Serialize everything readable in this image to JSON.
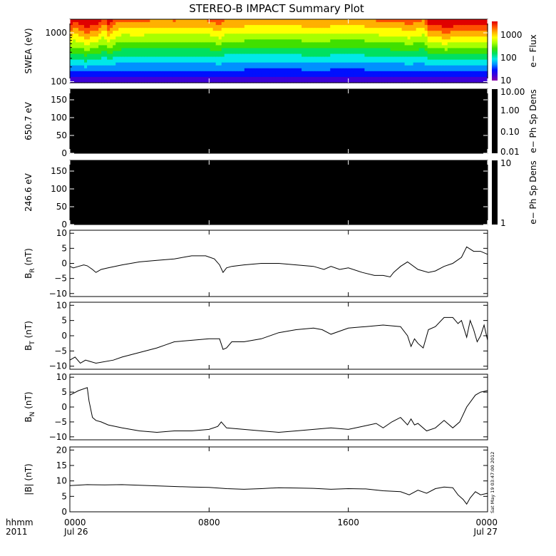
{
  "chart_data": {
    "title": "STEREO-B IMPACT Summary Plot",
    "time_axis": {
      "row_label": "hhmm",
      "year_label": "2011",
      "range_hours": [
        0,
        24
      ],
      "ticks": [
        {
          "hour": 0,
          "label": "0000",
          "date": "Jul 26"
        },
        {
          "hour": 8,
          "label": "0800",
          "date": ""
        },
        {
          "hour": 16,
          "label": "1600",
          "date": ""
        },
        {
          "hour": 24,
          "label": "0000",
          "date": "Jul 27"
        }
      ]
    },
    "timestamp": "Sat May 19 03:47:00 2012",
    "panels": [
      {
        "id": "swea",
        "type": "heatmap",
        "ylabel": "SWEA (eV)",
        "yscale": "log",
        "ylim": [
          95,
          1900
        ],
        "yticks": [
          {
            "v": 100,
            "label": "100"
          },
          {
            "v": 1000,
            "label": "1000"
          }
        ],
        "colorbar": {
          "label": "e− Flux",
          "scale": "log",
          "range": [
            10,
            4000
          ],
          "ticks": [
            {
              "v": 10,
              "label": "10"
            },
            {
              "v": 100,
              "label": "100"
            },
            {
              "v": 1000,
              "label": "1000"
            }
          ],
          "colors": [
            "#8a00a8",
            "#3f00d8",
            "#0010ff",
            "#0090ff",
            "#00e8e8",
            "#00e060",
            "#40e000",
            "#a8ff00",
            "#ffff00",
            "#ffb000",
            "#ff5000",
            "#e00000"
          ]
        },
        "intensity_profile": [
          [
            0,
            1.0
          ],
          [
            0.3,
            0.6
          ],
          [
            0.9,
            1.1
          ],
          [
            1.5,
            0.9
          ],
          [
            2.0,
            0.2
          ],
          [
            2.2,
            0.9
          ],
          [
            2.6,
            0.35
          ],
          [
            3.0,
            0.1
          ],
          [
            4.0,
            0.15
          ],
          [
            5.0,
            0.05
          ],
          [
            6.0,
            0.1
          ],
          [
            7.0,
            0.0
          ],
          [
            8.0,
            0.1
          ],
          [
            8.6,
            0.45
          ],
          [
            8.9,
            0.0
          ],
          [
            10.0,
            0.0
          ],
          [
            12.0,
            -0.1
          ],
          [
            14.0,
            0.05
          ],
          [
            15.0,
            0.0
          ],
          [
            16.0,
            -0.1
          ],
          [
            17.0,
            0.0
          ],
          [
            18.0,
            0.15
          ],
          [
            19.0,
            0.2
          ],
          [
            19.5,
            0.4
          ],
          [
            20.0,
            0.2
          ],
          [
            20.4,
            0.05
          ],
          [
            20.6,
            0.9
          ],
          [
            21.5,
            1.05
          ],
          [
            22.5,
            1.0
          ],
          [
            23.5,
            0.95
          ],
          [
            24,
            1.0
          ]
        ]
      },
      {
        "id": "ps650",
        "type": "heatmap",
        "ylabel": "650.7 eV",
        "ylim": [
          0,
          180
        ],
        "yticks": [
          {
            "v": 0,
            "label": "0"
          },
          {
            "v": 50,
            "label": "50"
          },
          {
            "v": 100,
            "label": "100"
          },
          {
            "v": 150,
            "label": "150"
          }
        ],
        "fill": "#000000",
        "colorbar": {
          "label": "e− Ph Sp Dens",
          "scale": "log",
          "range": [
            0.01,
            10
          ],
          "ticks": [
            {
              "v": 0.01,
              "label": "0.01"
            },
            {
              "v": 0.1,
              "label": "0.10"
            },
            {
              "v": 1,
              "label": "1.00"
            },
            {
              "v": 10,
              "label": "10.00"
            }
          ],
          "fill": "#000000"
        }
      },
      {
        "id": "ps246",
        "type": "heatmap",
        "ylabel": "246.6 eV",
        "ylim": [
          0,
          180
        ],
        "yticks": [
          {
            "v": 0,
            "label": "0"
          },
          {
            "v": 50,
            "label": "50"
          },
          {
            "v": 100,
            "label": "100"
          },
          {
            "v": 150,
            "label": "150"
          }
        ],
        "fill": "#000000",
        "colorbar": {
          "label": "e− Ph Sp Dens",
          "scale": "log",
          "range": [
            1,
            10
          ],
          "ticks": [
            {
              "v": 1,
              "label": "1"
            },
            {
              "v": 10,
              "label": "10"
            }
          ],
          "fill": "#000000"
        }
      },
      {
        "id": "br",
        "type": "line",
        "ylabel": "B",
        "ylabel_sub": "R",
        "ylabel_unit": " (nT)",
        "ylim": [
          -11,
          11
        ],
        "yticks": [
          {
            "v": -10,
            "label": "−10"
          },
          {
            "v": -5,
            "label": "−5"
          },
          {
            "v": 0,
            "label": "0"
          },
          {
            "v": 5,
            "label": "5"
          },
          {
            "v": 10,
            "label": "10"
          }
        ],
        "x": [
          0,
          0.2,
          0.5,
          0.8,
          1.0,
          1.3,
          1.5,
          1.8,
          2.2,
          3.0,
          4.0,
          5.0,
          6.0,
          7.0,
          7.8,
          8.3,
          8.6,
          8.8,
          9.0,
          9.3,
          10.0,
          11.0,
          12.0,
          13.0,
          14.0,
          14.6,
          15.0,
          15.5,
          16.0,
          16.8,
          17.5,
          18.0,
          18.4,
          18.6,
          19.0,
          19.4,
          20.0,
          20.6,
          21.0,
          21.5,
          22.0,
          22.5,
          22.8,
          23.2,
          23.6,
          24.0
        ],
        "y": [
          -1.0,
          -1.5,
          -1.0,
          -0.5,
          -0.8,
          -2.0,
          -3.0,
          -2.0,
          -1.5,
          -0.5,
          0.5,
          1.0,
          1.5,
          2.5,
          2.5,
          1.5,
          -0.5,
          -3.0,
          -1.5,
          -1.0,
          -0.5,
          0.0,
          0.0,
          -0.5,
          -1.0,
          -2.0,
          -1.0,
          -2.0,
          -1.5,
          -3.0,
          -4.0,
          -4.0,
          -4.5,
          -3.0,
          -1.0,
          0.5,
          -2.0,
          -3.0,
          -2.5,
          -1.0,
          0.0,
          2.0,
          5.5,
          4.0,
          4.0,
          3.0
        ]
      },
      {
        "id": "bt",
        "type": "line",
        "ylabel": "B",
        "ylabel_sub": "T",
        "ylabel_unit": " (nT)",
        "ylim": [
          -11,
          11
        ],
        "yticks": [
          {
            "v": -10,
            "label": "−10"
          },
          {
            "v": -5,
            "label": "−5"
          },
          {
            "v": 0,
            "label": "0"
          },
          {
            "v": 5,
            "label": "5"
          },
          {
            "v": 10,
            "label": "10"
          }
        ],
        "x": [
          0,
          0.3,
          0.6,
          0.9,
          1.5,
          2.5,
          3.0,
          4.0,
          5.0,
          5.5,
          6.0,
          7.0,
          8.0,
          8.6,
          8.8,
          9.0,
          9.3,
          10.0,
          11.0,
          12.0,
          13.0,
          14.0,
          14.5,
          15.0,
          16.0,
          17.0,
          18.0,
          19.0,
          19.4,
          19.6,
          19.8,
          20.0,
          20.3,
          20.6,
          21.0,
          21.5,
          22.0,
          22.3,
          22.5,
          22.8,
          23.0,
          23.2,
          23.4,
          23.6,
          23.8,
          24.0
        ],
        "y": [
          -8.0,
          -7.0,
          -9.0,
          -8.0,
          -9.0,
          -8.0,
          -7.0,
          -5.5,
          -4.0,
          -3.0,
          -2.0,
          -1.5,
          -1.0,
          -1.0,
          -4.5,
          -4.0,
          -2.0,
          -2.0,
          -1.0,
          1.0,
          2.0,
          2.5,
          2.0,
          0.5,
          2.5,
          3.0,
          3.5,
          3.0,
          0.0,
          -3.5,
          -1.0,
          -2.5,
          -4.0,
          2.0,
          3.0,
          6.0,
          6.0,
          4.0,
          5.0,
          -0.5,
          5.0,
          2.0,
          -2.0,
          0.0,
          3.5,
          -1.5
        ]
      },
      {
        "id": "bn",
        "type": "line",
        "ylabel": "B",
        "ylabel_sub": "N",
        "ylabel_unit": " (nT)",
        "ylim": [
          -11,
          11
        ],
        "yticks": [
          {
            "v": -10,
            "label": "−10"
          },
          {
            "v": -5,
            "label": "−5"
          },
          {
            "v": 0,
            "label": "0"
          },
          {
            "v": 5,
            "label": "5"
          },
          {
            "v": 10,
            "label": "10"
          }
        ],
        "x": [
          0,
          0.5,
          1.0,
          1.1,
          1.3,
          1.5,
          1.8,
          2.2,
          3.0,
          4.0,
          5.0,
          6.0,
          7.0,
          8.0,
          8.5,
          8.7,
          9.0,
          10.0,
          11.0,
          12.0,
          13.0,
          14.0,
          15.0,
          16.0,
          16.8,
          17.2,
          17.6,
          18.0,
          18.5,
          19.0,
          19.4,
          19.6,
          19.8,
          20.0,
          20.5,
          21.0,
          21.5,
          22.0,
          22.4,
          22.8,
          23.3,
          23.6,
          24.0
        ],
        "y": [
          4.0,
          5.5,
          6.5,
          2.0,
          -3.5,
          -4.5,
          -5.0,
          -6.0,
          -7.0,
          -8.0,
          -8.5,
          -8.0,
          -8.0,
          -7.5,
          -6.5,
          -5.0,
          -7.0,
          -7.5,
          -8.0,
          -8.5,
          -8.0,
          -7.5,
          -7.0,
          -7.5,
          -6.5,
          -6.0,
          -5.5,
          -7.0,
          -5.0,
          -3.5,
          -6.0,
          -4.0,
          -6.0,
          -5.5,
          -8.0,
          -7.0,
          -4.5,
          -7.0,
          -5.0,
          0.0,
          4.0,
          5.0,
          5.5
        ]
      },
      {
        "id": "bmag",
        "type": "line",
        "ylabel": "|B| (nT)",
        "ylim": [
          0,
          21
        ],
        "yticks": [
          {
            "v": 0,
            "label": "0"
          },
          {
            "v": 5,
            "label": "5"
          },
          {
            "v": 10,
            "label": "10"
          },
          {
            "v": 15,
            "label": "15"
          },
          {
            "v": 20,
            "label": "20"
          }
        ],
        "x": [
          0,
          1.0,
          2.0,
          3.0,
          4.0,
          5.0,
          6.0,
          7.0,
          8.0,
          9.0,
          10.0,
          11.0,
          12.0,
          13.0,
          14.0,
          15.0,
          16.0,
          17.0,
          18.0,
          19.0,
          19.5,
          20.0,
          20.5,
          21.0,
          21.5,
          22.0,
          22.3,
          22.6,
          22.8,
          23.0,
          23.3,
          23.6,
          24.0
        ],
        "y": [
          8.5,
          8.8,
          8.7,
          8.8,
          8.6,
          8.4,
          8.2,
          8.0,
          7.9,
          7.5,
          7.3,
          7.5,
          7.8,
          7.7,
          7.6,
          7.3,
          7.5,
          7.4,
          6.8,
          6.5,
          5.5,
          7.0,
          6.0,
          7.5,
          8.0,
          7.8,
          5.5,
          4.0,
          2.5,
          4.5,
          6.5,
          5.5,
          6.0
        ]
      }
    ]
  }
}
